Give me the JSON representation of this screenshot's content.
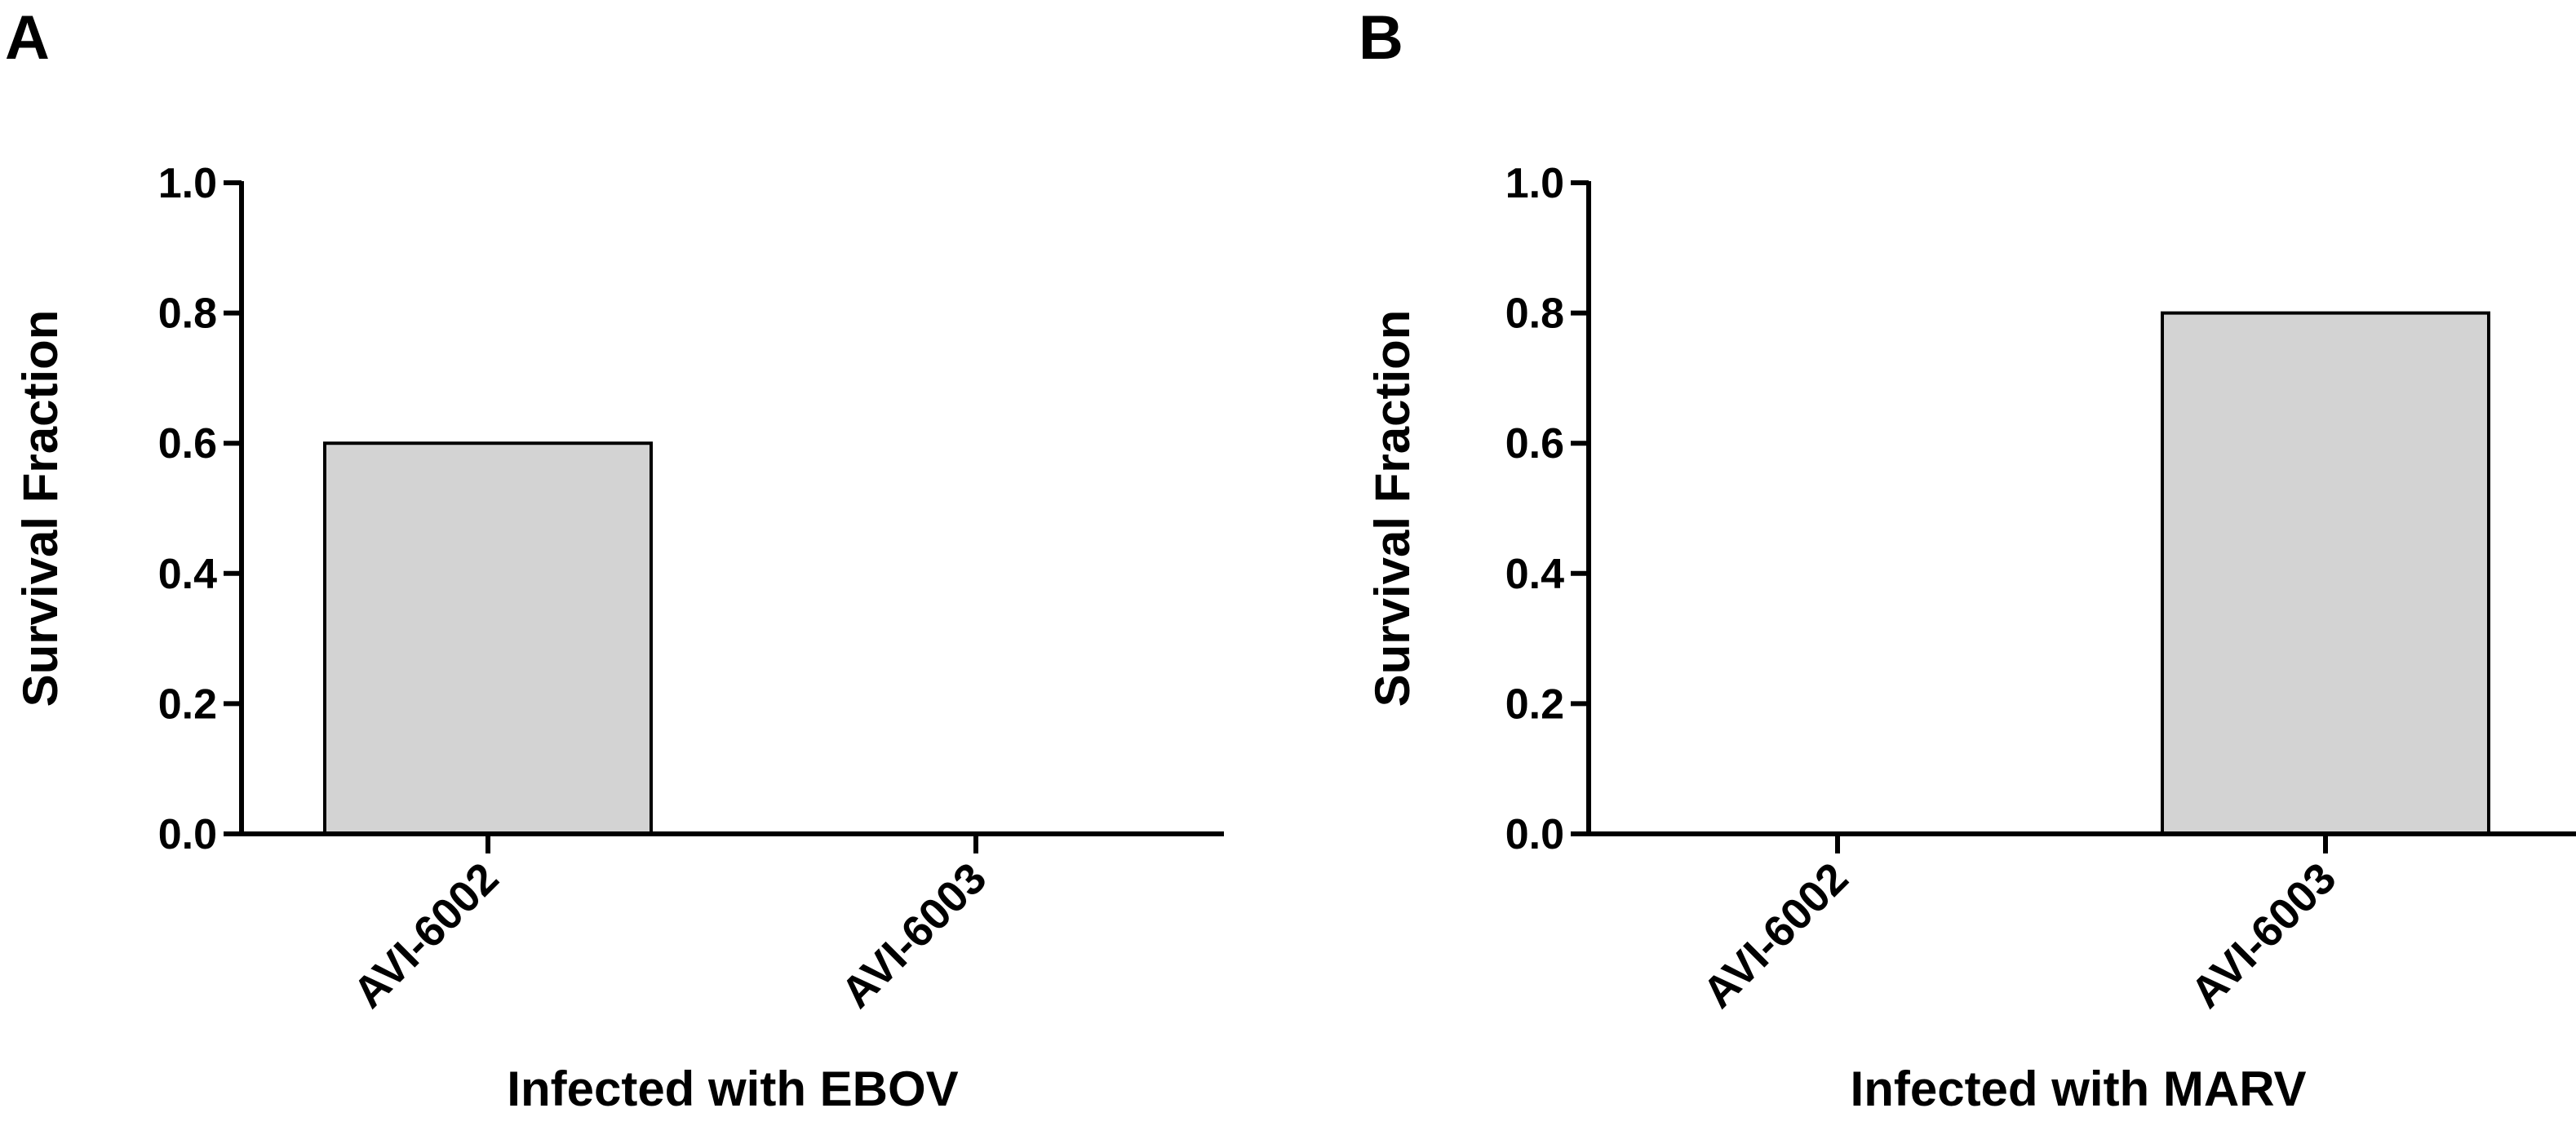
{
  "chart_data": [
    {
      "type": "bar",
      "panel_label": "A",
      "categories": [
        "AVI-6002",
        "AVI-6003"
      ],
      "values": [
        0.6,
        0.0
      ],
      "xlabel": "Infected with EBOV",
      "ylabel": "Survival Fraction",
      "ylim": [
        0,
        1.0
      ],
      "yticks": [
        "0.0",
        "0.2",
        "0.4",
        "0.6",
        "0.8",
        "1.0"
      ],
      "grid": false,
      "bar_color": "#d3d3d3"
    },
    {
      "type": "bar",
      "panel_label": "B",
      "categories": [
        "AVI-6002",
        "AVI-6003"
      ],
      "values": [
        0.0,
        0.8
      ],
      "xlabel": "Infected with MARV",
      "ylabel": "Survival Fraction",
      "ylim": [
        0,
        1.0
      ],
      "yticks": [
        "0.0",
        "0.2",
        "0.4",
        "0.6",
        "0.8",
        "1.0"
      ],
      "grid": false,
      "bar_color": "#d3d3d3"
    }
  ]
}
